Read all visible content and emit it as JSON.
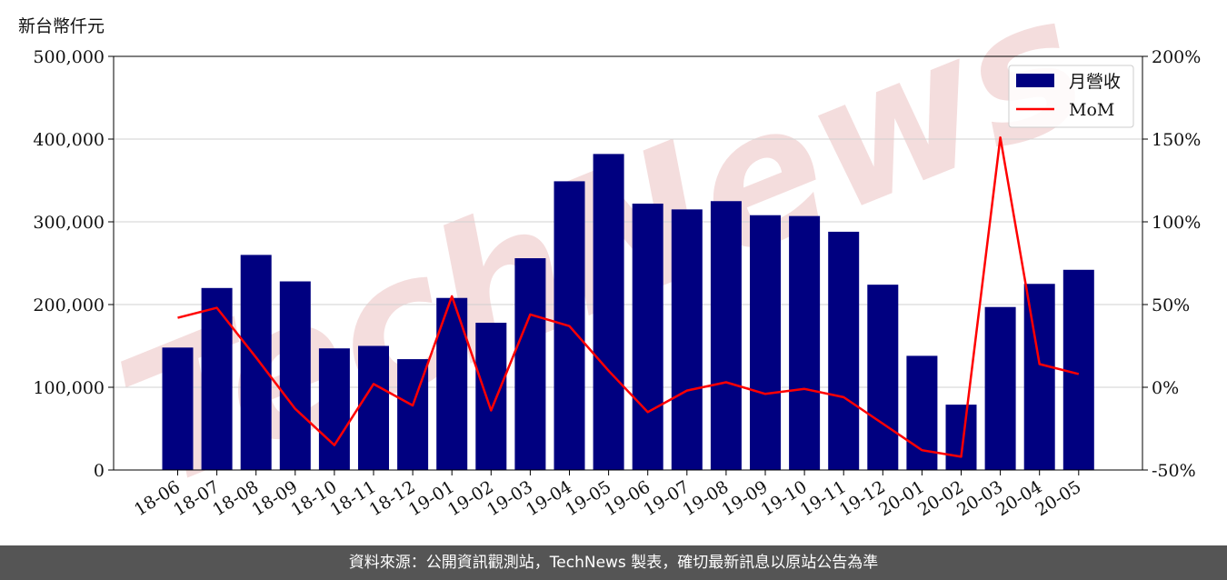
{
  "chart_data": {
    "type": "bar",
    "unit_label": "新台幣仟元",
    "categories": [
      "18-06",
      "18-07",
      "18-08",
      "18-09",
      "18-10",
      "18-11",
      "18-12",
      "19-01",
      "19-02",
      "19-03",
      "19-04",
      "19-05",
      "19-06",
      "19-07",
      "19-08",
      "19-09",
      "19-10",
      "19-11",
      "19-12",
      "20-01",
      "20-02",
      "20-03",
      "20-04",
      "20-05"
    ],
    "series": [
      {
        "name": "月營收",
        "type": "bar",
        "axis": "left",
        "color": "#000080",
        "values": [
          148000,
          220000,
          260000,
          228000,
          147000,
          150000,
          134000,
          208000,
          178000,
          256000,
          349000,
          382000,
          322000,
          315000,
          325000,
          308000,
          307000,
          288000,
          224000,
          138000,
          79000,
          197000,
          225000,
          242000
        ]
      },
      {
        "name": "MoM",
        "type": "line",
        "axis": "right",
        "color": "#ff0000",
        "values": [
          42,
          48,
          18,
          -13,
          -35,
          2,
          -11,
          55,
          -14,
          44,
          37,
          10,
          -15,
          -2,
          3,
          -4,
          -1,
          -6,
          -22,
          -38,
          -42,
          151,
          14,
          8
        ]
      }
    ],
    "y_left": {
      "min": 0,
      "max": 500000,
      "ticks": [
        0,
        100000,
        200000,
        300000,
        400000,
        500000
      ],
      "tick_labels": [
        "0",
        "100,000",
        "200,000",
        "300,000",
        "400,000",
        "500,000"
      ]
    },
    "y_right": {
      "min": -50,
      "max": 200,
      "ticks": [
        -50,
        0,
        50,
        100,
        150,
        200
      ],
      "tick_labels": [
        "-50%",
        "0%",
        "50%",
        "100%",
        "150%",
        "200%"
      ]
    },
    "grid": true,
    "legend_position": "top-right",
    "watermark": "TechNews",
    "colors": {
      "bar": "#000080",
      "line": "#ff0000",
      "grid": "#d0d0d0",
      "watermark": "#e8b4b4"
    }
  },
  "footer": {
    "text": "資料來源：公開資訊觀測站，TechNews 製表，確切最新訊息以原站公告為準"
  }
}
